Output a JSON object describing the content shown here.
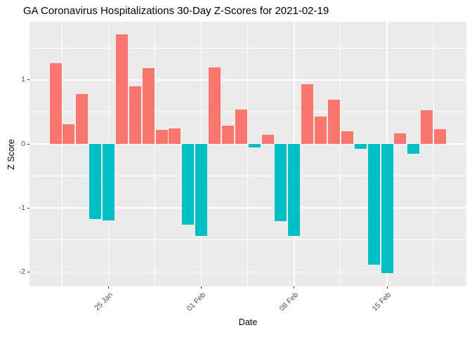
{
  "title": "GA Coronavirus Hospitalizations 30-Day Z-Scores for 2021-02-19",
  "axes": {
    "x_title": "Date",
    "y_title": "Z Score",
    "y_tick_labels": [
      "1",
      "0",
      "-1",
      "-2"
    ],
    "x_tick_labels": [
      "25 Jan",
      "01 Feb",
      "08 Feb",
      "15 Feb"
    ]
  },
  "chart_data": {
    "type": "bar",
    "title": "GA Coronavirus Hospitalizations 30-Day Z-Scores for 2021-02-19",
    "xlabel": "Date",
    "ylabel": "Z Score",
    "x": [
      "2021-01-21",
      "2021-01-22",
      "2021-01-23",
      "2021-01-24",
      "2021-01-25",
      "2021-01-26",
      "2021-01-27",
      "2021-01-28",
      "2021-01-29",
      "2021-01-30",
      "2021-01-31",
      "2021-02-01",
      "2021-02-02",
      "2021-02-03",
      "2021-02-04",
      "2021-02-05",
      "2021-02-06",
      "2021-02-07",
      "2021-02-08",
      "2021-02-09",
      "2021-02-10",
      "2021-02-11",
      "2021-02-12",
      "2021-02-13",
      "2021-02-14",
      "2021-02-15",
      "2021-02-16",
      "2021-02-17",
      "2021-02-18",
      "2021-02-19"
    ],
    "values": [
      1.26,
      0.31,
      0.78,
      -1.17,
      -1.19,
      1.71,
      0.9,
      1.18,
      0.22,
      0.24,
      -1.26,
      -1.44,
      1.19,
      0.29,
      0.54,
      -0.05,
      0.14,
      -1.21,
      -1.44,
      0.93,
      0.43,
      0.69,
      0.2,
      -0.08,
      -1.89,
      -2.02,
      0.16,
      -0.15,
      0.53,
      0.23
    ],
    "ylim": [
      -2.23,
      1.9
    ],
    "grid": true,
    "legend_position": "none",
    "y_major_ticks": [
      1,
      0,
      -1,
      -2
    ],
    "y_minor_ticks": [
      1.5,
      0.5,
      -0.5,
      -1.5
    ],
    "x_major_ticks": [
      {
        "index": 4,
        "label": "25 Jan"
      },
      {
        "index": 11,
        "label": "01 Feb"
      },
      {
        "index": 18,
        "label": "08 Feb"
      },
      {
        "index": 25,
        "label": "15 Feb"
      }
    ],
    "x_minor_tick_indices": [
      0.5,
      7.5,
      14.5,
      21.5,
      28.5
    ],
    "colors": {
      "positive_bar": "#F8766D",
      "negative_bar": "#00BFC4",
      "panel_background": "#EBEBEB",
      "gridline": "#FFFFFF",
      "axis_text": "#4D4D4D",
      "tick_mark": "#333333",
      "title_text": "#000000"
    }
  }
}
